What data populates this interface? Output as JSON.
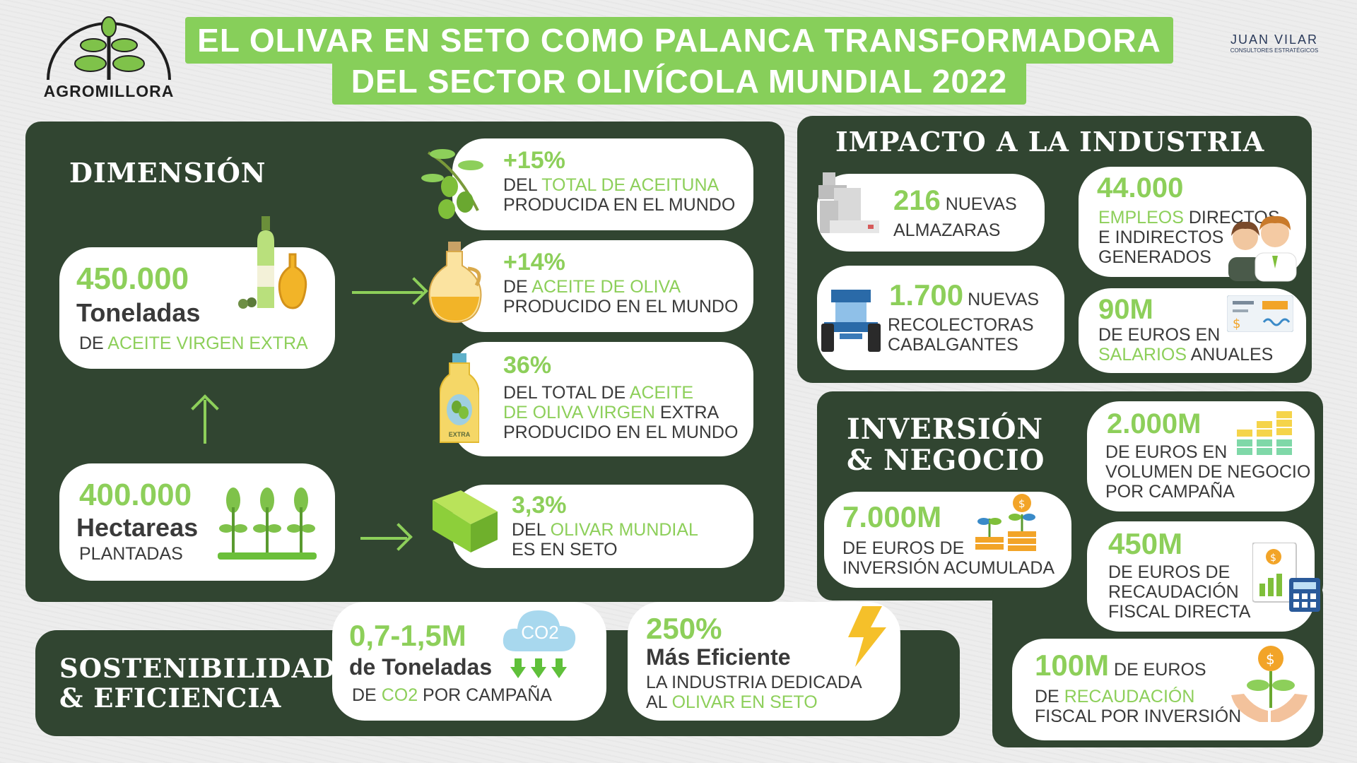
{
  "brand": {
    "logo_text": "AGROMILLORA",
    "partner_name": "JUAN VILAR",
    "partner_sub": "CONSULTORES ESTRATÉGICOS"
  },
  "title": {
    "line1": "EL OLIVAR EN SETO COMO PALANCA TRANSFORMADORA",
    "line2": "DEL SECTOR OLIVÍCOLA MUNDIAL 2022"
  },
  "dimension": {
    "heading": "DIMENSIÓN",
    "oil": {
      "value": "450.000",
      "unit": "Toneladas",
      "desc_a": "DE ",
      "desc_b": "ACEITE VIRGEN EXTRA"
    },
    "area": {
      "value": "400.000",
      "unit": "Hectareas",
      "desc": "PLANTADAS"
    },
    "stats": [
      {
        "value": "+15%",
        "l1a": "DEL ",
        "l1b": "TOTAL DE ACEITUNA",
        "l2": "PRODUCIDA EN EL MUNDO"
      },
      {
        "value": "+14%",
        "l1a": "DE ",
        "l1b": "ACEITE DE OLIVA",
        "l2": "PRODUCIDO EN EL MUNDO"
      },
      {
        "value": "36%",
        "l1a": "DEL TOTAL DE ",
        "l1b": "ACEITE",
        "l2a": "DE OLIVA VIRGEN",
        "l2b": " EXTRA",
        "l3": "PRODUCIDO EN EL MUNDO"
      },
      {
        "value": "3,3%",
        "l1a": "DEL ",
        "l1b": "OLIVAR MUNDIAL",
        "l2": "ES EN SETO"
      }
    ],
    "bottle_label": "EXTRA"
  },
  "industry": {
    "heading": "IMPACTO A LA INDUSTRIA",
    "mills": {
      "value": "216",
      "word": " NUEVAS",
      "desc": "ALMAZARAS"
    },
    "jobs": {
      "value": "44.000",
      "l1a": "EMPLEOS",
      "l1b": " DIRECTOS",
      "l2": "E INDIRECTOS",
      "l3": "GENERADOS"
    },
    "harvesters": {
      "value": "1.700",
      "word": "NUEVAS",
      "l1": "RECOLECTORAS",
      "l2": "CABALGANTES"
    },
    "salaries": {
      "value": "90M",
      "l1": "DE EUROS EN",
      "l2a": "SALARIOS",
      "l2b": " ANUALES"
    }
  },
  "investment": {
    "heading_1": "INVERSIÓN",
    "heading_2": "& NEGOCIO",
    "volume": {
      "value": "2.000M",
      "l1": "DE EUROS EN",
      "l2": "VOLUMEN DE NEGOCIO",
      "l3": "POR CAMPAÑA"
    },
    "accumulated": {
      "value": "7.000M",
      "l1": "DE EUROS DE",
      "l2": "INVERSIÓN ACUMULADA"
    },
    "tax": {
      "value": "450M",
      "l1": "DE EUROS DE",
      "l2": "RECAUDACIÓN",
      "l3": "FISCAL DIRECTA"
    },
    "tax_invest": {
      "value": "100M",
      "word": " DE EUROS",
      "l2a": "DE ",
      "l2b": "RECAUDACIÓN",
      "l3": "FISCAL POR INVERSIÓN"
    }
  },
  "sustainability": {
    "heading_1": "SOSTENIBILIDAD",
    "heading_2": "& EFICIENCIA",
    "co2": {
      "value": "0,7-1,5M",
      "unit": "de Toneladas",
      "l1a": "DE ",
      "l1b": "CO2",
      "l1c": " POR CAMPAÑA",
      "icon_text": "CO2"
    },
    "efficiency": {
      "value": "250%",
      "unit": "Más Eficiente",
      "l1": "LA INDUSTRIA DEDICADA",
      "l2a": "AL ",
      "l2b": "OLIVAR EN SETO"
    }
  },
  "colors": {
    "accent_green": "#8dcf5a",
    "panel_green": "#314531",
    "title_green": "#87cf5a",
    "background": "#ededed"
  }
}
